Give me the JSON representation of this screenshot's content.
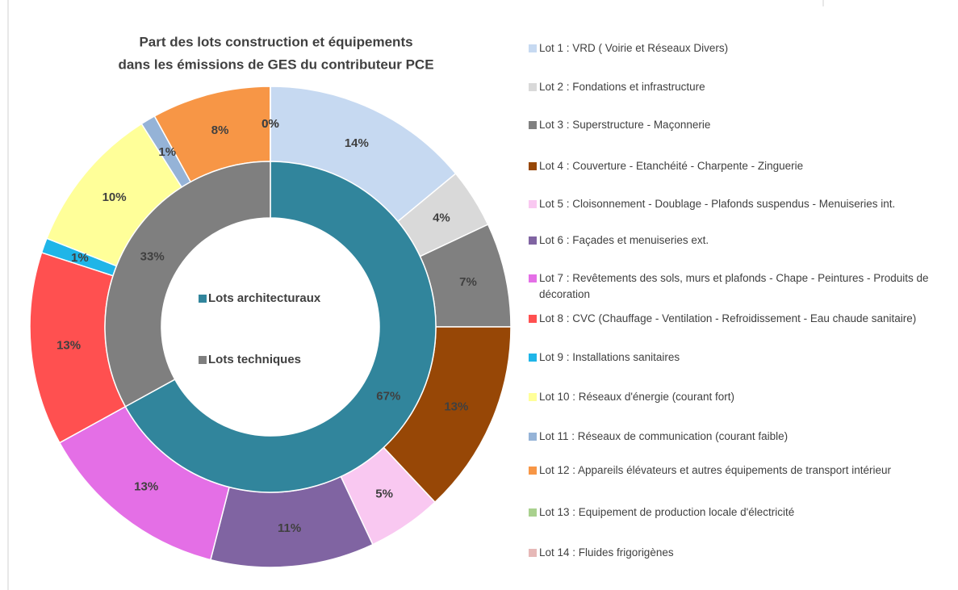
{
  "chart_data": {
    "type": "donut",
    "title": [
      "Part des lots construction et équipements",
      "dans les émissions de GES du contributeur PCE"
    ],
    "series": [
      {
        "categories": [
          "Lot 1 : VRD ( Voirie et Réseaux Divers)",
          "Lot 2 : Fondations et infrastructure",
          "Lot 3 : Superstructure - Maçonnerie",
          "Lot 4 : Couverture - Etanchéité - Charpente - Zinguerie",
          "Lot 5 : Cloisonnement - Doublage - Plafonds suspendus - Menuiseries int.",
          "Lot 6 : Façades et menuiseries ext.",
          "Lot 7 : Revêtements des sols, murs et plafonds - Chape - Peintures - Produits de décoration",
          "Lot 8 : CVC (Chauffage - Ventilation - Refroidissement - Eau chaude sanitaire)",
          "Lot 9 : Installations sanitaires",
          "Lot 10 : Réseaux d'énergie (courant fort)",
          "Lot 11 : Réseaux de communication (courant faible)",
          "Lot 12 : Appareils élévateurs et autres équipements de transport intérieur",
          "Lot 13 : Equipement de production locale d'électricité",
          "Lot 14 : Fluides frigorigènes"
        ],
        "values": [
          14,
          4,
          7,
          13,
          5,
          11,
          13,
          13,
          1,
          10,
          1,
          8,
          0,
          0
        ],
        "value_labels": [
          "14%",
          "4%",
          "7%",
          "13%",
          "5%",
          "11%",
          "13%",
          "13%",
          "1%",
          "10%",
          "1%",
          "8%",
          "0%",
          "0%"
        ],
        "colors": [
          "#c6d9f1",
          "#d9d9d9",
          "#808080",
          "#974706",
          "#f9c8f1",
          "#8064a2",
          "#e46fe6",
          "#ff5050",
          "#1fb5e8",
          "#ffff99",
          "#95b3d7",
          "#f79646",
          "#a9d18e",
          "#e6b8b7"
        ]
      },
      {
        "categories": [
          "Lots architecturaux",
          "Lots techniques"
        ],
        "values": [
          67,
          33
        ],
        "value_labels": [
          "67%",
          "33%"
        ],
        "colors": [
          "#31859c",
          "#7f7f7f"
        ]
      }
    ]
  }
}
